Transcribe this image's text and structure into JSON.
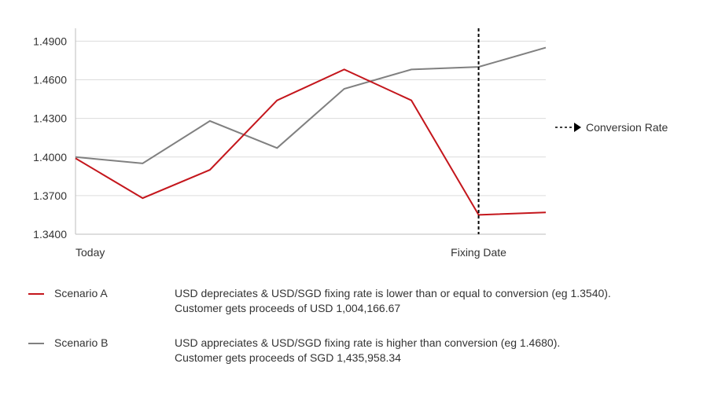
{
  "chart_data": {
    "type": "line",
    "x": [
      "Today",
      "",
      "",
      "",
      "",
      "",
      "Fixing Date",
      ""
    ],
    "x_tick_labels": [
      "Today",
      "Fixing Date"
    ],
    "y_ticks": [
      "1.3400",
      "1.3700",
      "1.4000",
      "1.4300",
      "1.4600",
      "1.4900"
    ],
    "ylim": [
      1.34,
      1.5
    ],
    "grid": "horizontal",
    "series": [
      {
        "name": "Scenario A",
        "color": "#c4161c",
        "values": [
          1.399,
          1.368,
          1.39,
          1.444,
          1.468,
          1.444,
          1.355,
          1.357
        ]
      },
      {
        "name": "Scenario B",
        "color": "#808080",
        "values": [
          1.4,
          1.395,
          1.428,
          1.407,
          1.453,
          1.468,
          1.47,
          1.485
        ]
      }
    ],
    "marker": {
      "label": "Conversion Rate",
      "style": "dashed-vertical",
      "color": "#000000",
      "x_index": 6
    }
  },
  "legend": [
    {
      "name": "Scenario A",
      "color": "#c4161c",
      "lines": [
        "USD depreciates & USD/SGD fixing rate is lower than or equal to conversion (eg 1.3540).",
        "Customer gets proceeds of USD 1,004,166.67"
      ]
    },
    {
      "name": "Scenario B",
      "color": "#808080",
      "lines": [
        "USD appreciates & USD/SGD fixing rate is higher than conversion (eg 1.4680).",
        "Customer gets proceeds of SGD 1,435,958.34"
      ]
    }
  ]
}
